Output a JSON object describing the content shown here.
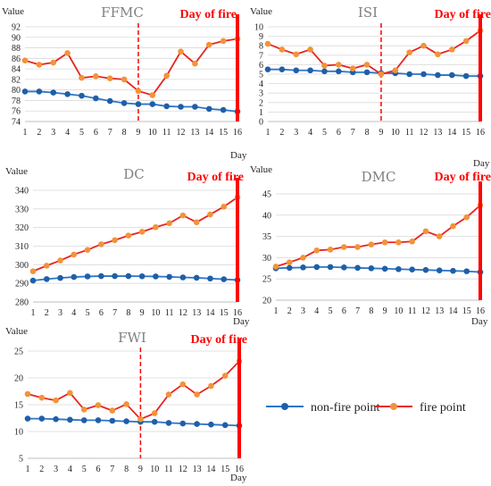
{
  "legend": {
    "non_fire_label": "non-fire point",
    "fire_label": "fire point"
  },
  "colors": {
    "non_fire": "#2e75c6",
    "non_fire_marker": "#1f5fa8",
    "fire_line": "#e8231e",
    "fire_marker": "#f2933a",
    "fire_day": "#ff0000"
  },
  "chart_data": [
    {
      "type": "line",
      "title": "FFMC",
      "ylabel": "Value",
      "xlabel": "Day",
      "fire_annotation": "Day of fire",
      "x": [
        1,
        2,
        3,
        4,
        5,
        6,
        7,
        8,
        9,
        10,
        11,
        12,
        13,
        14,
        15,
        16
      ],
      "ylim": [
        74,
        92
      ],
      "yticks": [
        74,
        76,
        78,
        80,
        82,
        84,
        86,
        88,
        90,
        92
      ],
      "dashed_line_day": 9,
      "series": [
        {
          "name": "non-fire point",
          "values": [
            79.7,
            79.7,
            79.5,
            79.2,
            78.9,
            78.4,
            77.9,
            77.5,
            77.3,
            77.3,
            76.9,
            76.8,
            76.8,
            76.4,
            76.2,
            75.9
          ]
        },
        {
          "name": "fire point",
          "values": [
            85.6,
            84.8,
            85.2,
            87.0,
            82.3,
            82.6,
            82.2,
            82.0,
            79.8,
            79.0,
            82.7,
            87.3,
            85.0,
            88.6,
            89.3,
            89.7
          ]
        }
      ]
    },
    {
      "type": "line",
      "title": "ISI",
      "ylabel": "Value",
      "xlabel": "Day",
      "fire_annotation": "Day of fire",
      "x": [
        1,
        2,
        3,
        4,
        5,
        6,
        7,
        8,
        9,
        10,
        11,
        12,
        13,
        14,
        15,
        16
      ],
      "ylim": [
        0,
        10
      ],
      "yticks": [
        0,
        1,
        2,
        3,
        4,
        5,
        6,
        7,
        8,
        9,
        10
      ],
      "dashed_line_day": 9,
      "series": [
        {
          "name": "non-fire point",
          "values": [
            5.5,
            5.5,
            5.4,
            5.4,
            5.3,
            5.3,
            5.2,
            5.2,
            5.1,
            5.1,
            5.0,
            5.0,
            4.9,
            4.9,
            4.8,
            4.8
          ]
        },
        {
          "name": "fire point",
          "values": [
            8.2,
            7.6,
            7.1,
            7.6,
            5.9,
            6.0,
            5.6,
            6.0,
            5.0,
            5.4,
            7.3,
            8.0,
            7.1,
            7.6,
            8.5,
            9.6
          ]
        }
      ]
    },
    {
      "type": "line",
      "title": "DC",
      "ylabel": "Value",
      "xlabel": "Day",
      "fire_annotation": "Day of fire",
      "x": [
        1,
        2,
        3,
        4,
        5,
        6,
        7,
        8,
        9,
        10,
        11,
        12,
        13,
        14,
        15,
        16
      ],
      "ylim": [
        280,
        340
      ],
      "yticks": [
        280,
        290,
        300,
        310,
        320,
        330,
        340
      ],
      "series": [
        {
          "name": "non-fire point",
          "values": [
            291.5,
            292.3,
            292.9,
            293.4,
            293.7,
            293.9,
            293.9,
            293.9,
            293.8,
            293.7,
            293.5,
            293.2,
            293.0,
            292.6,
            292.2,
            291.8
          ]
        },
        {
          "name": "fire point",
          "values": [
            296.5,
            299.5,
            302.3,
            305.5,
            308.0,
            311.0,
            313.2,
            315.7,
            317.7,
            320.2,
            322.3,
            326.5,
            322.8,
            327.0,
            331.2,
            336.2
          ]
        }
      ]
    },
    {
      "type": "line",
      "title": "DMC",
      "ylabel": "Value",
      "xlabel": "Day",
      "fire_annotation": "Day of fire",
      "x": [
        1,
        2,
        3,
        4,
        5,
        6,
        7,
        8,
        9,
        10,
        11,
        12,
        13,
        14,
        15,
        16
      ],
      "ylim": [
        20,
        45
      ],
      "yticks": [
        20,
        25,
        30,
        35,
        40,
        45
      ],
      "series": [
        {
          "name": "non-fire point",
          "values": [
            27.5,
            27.6,
            27.7,
            27.8,
            27.8,
            27.7,
            27.6,
            27.5,
            27.4,
            27.3,
            27.2,
            27.1,
            27.0,
            26.9,
            26.8,
            26.6
          ]
        },
        {
          "name": "fire point",
          "values": [
            27.9,
            28.9,
            30.0,
            31.7,
            31.9,
            32.5,
            32.5,
            33.1,
            33.6,
            33.6,
            33.8,
            36.2,
            35.0,
            37.4,
            39.5,
            42.3
          ]
        }
      ]
    },
    {
      "type": "line",
      "title": "FWI",
      "ylabel": "Value",
      "xlabel": "Day",
      "fire_annotation": "Day of fire",
      "x": [
        1,
        2,
        3,
        4,
        5,
        6,
        7,
        8,
        9,
        10,
        11,
        12,
        13,
        14,
        15,
        16
      ],
      "ylim": [
        5,
        25
      ],
      "yticks": [
        5,
        10,
        15,
        20,
        25
      ],
      "dashed_line_day": 9,
      "series": [
        {
          "name": "non-fire point",
          "values": [
            12.4,
            12.4,
            12.3,
            12.2,
            12.1,
            12.1,
            12.0,
            11.9,
            11.8,
            11.8,
            11.6,
            11.5,
            11.4,
            11.3,
            11.2,
            11.1
          ]
        },
        {
          "name": "fire point",
          "values": [
            17.0,
            16.3,
            15.8,
            17.2,
            14.1,
            14.9,
            13.9,
            15.1,
            12.3,
            13.4,
            16.9,
            18.8,
            16.9,
            18.5,
            20.4,
            23.1
          ]
        }
      ]
    }
  ]
}
